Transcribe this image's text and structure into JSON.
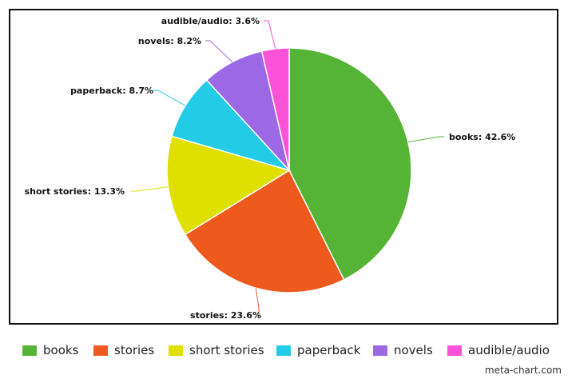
{
  "chart_data": {
    "type": "pie",
    "title": "",
    "slices": [
      {
        "name": "books",
        "value": 42.6,
        "color": "#55b435",
        "label": "books: 42.6%"
      },
      {
        "name": "stories",
        "value": 23.6,
        "color": "#ee5a1e",
        "label": "stories: 23.6%"
      },
      {
        "name": "short stories",
        "value": 13.3,
        "color": "#dfe000",
        "label": "short stories: 13.3%"
      },
      {
        "name": "paperback",
        "value": 8.7,
        "color": "#24cbe6",
        "label": "paperback: 8.7%"
      },
      {
        "name": "novels",
        "value": 8.2,
        "color": "#9d68e6",
        "label": "novels: 8.2%"
      },
      {
        "name": "audible/audio",
        "value": 3.6,
        "color": "#fa53d8",
        "label": "audible/audio: 3.6%"
      }
    ],
    "legend_placement": "bottom"
  },
  "legend": {
    "items": [
      "books",
      "stories",
      "short stories",
      "paperback",
      "novels",
      "audible/audio"
    ]
  },
  "credit": "meta-chart.com"
}
